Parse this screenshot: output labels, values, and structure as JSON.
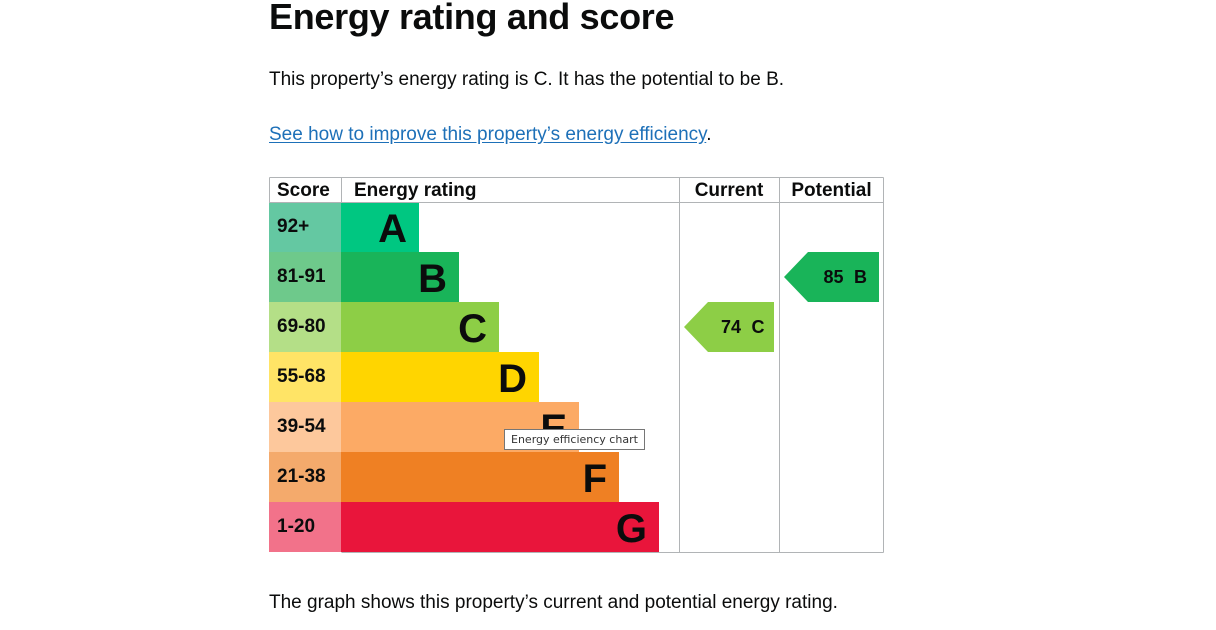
{
  "page": {
    "heading": "Energy rating and score",
    "intro": "This property’s energy rating is C. It has the potential to be B.",
    "improve_link": "See how to improve this property’s energy efficiency",
    "improve_link_suffix": ".",
    "caption": "The graph shows this property’s current and potential energy rating.",
    "tooltip": "Energy efficiency chart"
  },
  "chart_data": {
    "type": "table",
    "headers": {
      "score": "Score",
      "rating": "Energy rating",
      "current": "Current",
      "potential": "Potential"
    },
    "bands": [
      {
        "score": "92+",
        "letter": "A",
        "color": "#00c781",
        "score_bg": "#64c8a2"
      },
      {
        "score": "81-91",
        "letter": "B",
        "color": "#19b459",
        "score_bg": "#6ec98b"
      },
      {
        "score": "69-80",
        "letter": "C",
        "color": "#8dce46",
        "score_bg": "#b4df87"
      },
      {
        "score": "55-68",
        "letter": "D",
        "color": "#ffd500",
        "score_bg": "#ffe466"
      },
      {
        "score": "39-54",
        "letter": "E",
        "color": "#fcaa65",
        "score_bg": "#fdc89c"
      },
      {
        "score": "21-38",
        "letter": "F",
        "color": "#ef8023",
        "score_bg": "#f4aa6c"
      },
      {
        "score": "1-20",
        "letter": "G",
        "color": "#e9153b",
        "score_bg": "#f2728a"
      }
    ],
    "current": {
      "value": 74,
      "letter": "C",
      "color": "#8dce46"
    },
    "potential": {
      "value": 85,
      "letter": "B",
      "color": "#19b459"
    }
  }
}
